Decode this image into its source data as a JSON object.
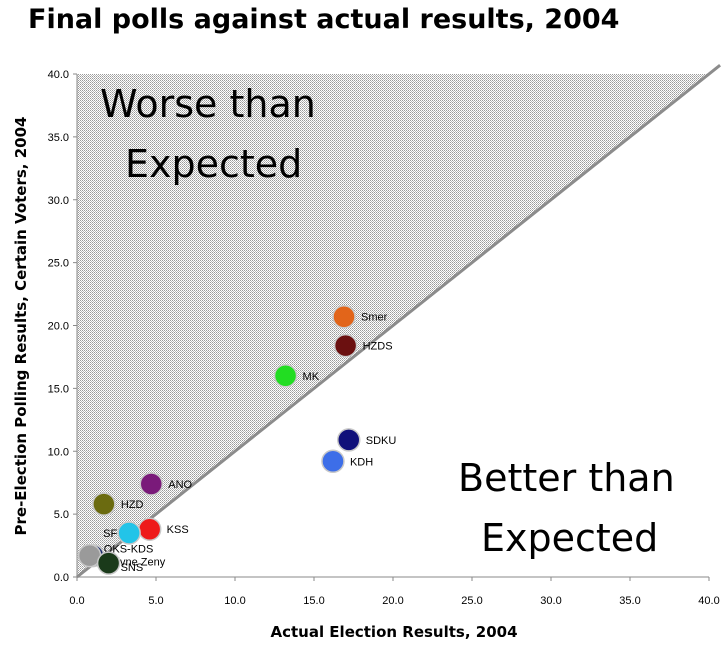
{
  "chart_data": {
    "type": "scatter",
    "title": "Final polls against actual results, 2004",
    "xlabel": "Actual Election Results, 2004",
    "ylabel": "Pre-Election Polling Results, Certain Voters, 2004",
    "xlim": [
      0,
      40
    ],
    "ylim": [
      0,
      40
    ],
    "xticks": [
      "0.0",
      "5.0",
      "10.0",
      "15.0",
      "20.0",
      "25.0",
      "30.0",
      "35.0",
      "40.0"
    ],
    "yticks": [
      "0.0",
      "5.0",
      "10.0",
      "15.0",
      "20.0",
      "25.0",
      "30.0",
      "35.0",
      "40.0"
    ],
    "reference_line": "y = x",
    "grid": false,
    "annotations": {
      "upper_region": [
        "Worse than",
        "Expected"
      ],
      "lower_region": [
        "Better than",
        "Expected"
      ]
    },
    "points": [
      {
        "label": "Smer",
        "x": 16.9,
        "y": 20.7,
        "color": "#e2651a"
      },
      {
        "label": "HZDS",
        "x": 17.0,
        "y": 18.4,
        "color": "#6b1010"
      },
      {
        "label": "MK",
        "x": 13.2,
        "y": 16.0,
        "color": "#22dd22"
      },
      {
        "label": "SDKU",
        "x": 17.2,
        "y": 10.9,
        "color": "#10107a"
      },
      {
        "label": "KDH",
        "x": 16.2,
        "y": 9.2,
        "color": "#3d6ee8"
      },
      {
        "label": "ANO",
        "x": 4.7,
        "y": 7.4,
        "color": "#7a1a7a"
      },
      {
        "label": "HZD",
        "x": 1.7,
        "y": 5.8,
        "color": "#6b6b10"
      },
      {
        "label": "KSS",
        "x": 4.6,
        "y": 3.8,
        "color": "#ee1a1a"
      },
      {
        "label": "SF",
        "x": 3.3,
        "y": 3.5,
        "color": "#22c4e8"
      },
      {
        "label": "OKS-KDS",
        "x": 1.0,
        "y": 1.7,
        "color": "#1a2a6a"
      },
      {
        "label": "Aktivne Zeny",
        "x": 0.8,
        "y": 1.7,
        "color": "#9a9a9a"
      },
      {
        "label": "SNS",
        "x": 2.0,
        "y": 1.1,
        "color": "#1a3a1a"
      }
    ]
  }
}
